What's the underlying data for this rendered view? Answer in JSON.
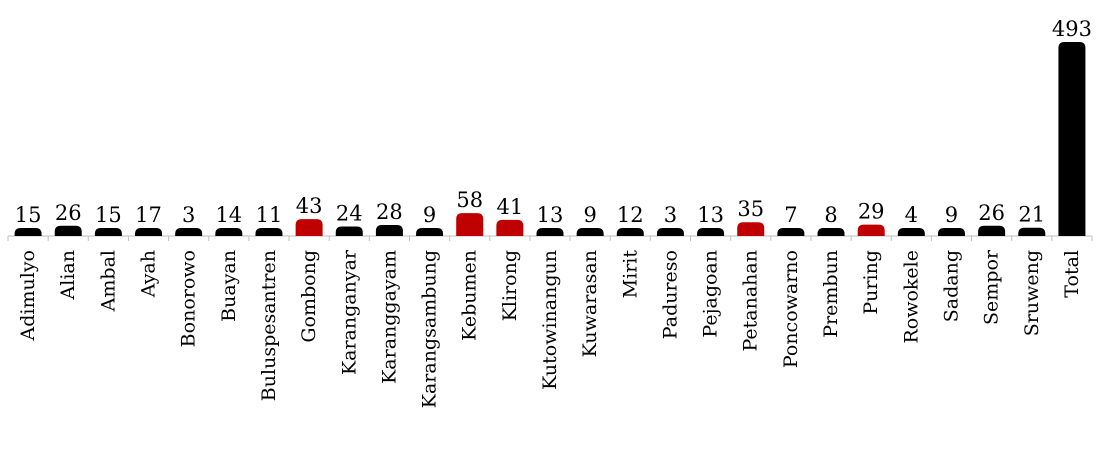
{
  "chart_data": {
    "type": "bar",
    "categories": [
      "Adimulyo",
      "Alian",
      "Ambal",
      "Ayah",
      "Bonorowo",
      "Buayan",
      "Buluspesantren",
      "Gombong",
      "Karanganyar",
      "Karanggayam",
      "Karangsambung",
      "Kebumen",
      "Klirong",
      "Kutowinangun",
      "Kuwarasan",
      "Mirit",
      "Padureso",
      "Pejagoan",
      "Petanahan",
      "Poncowarno",
      "Prembun",
      "Puring",
      "Rowokele",
      "Sadang",
      "Sempor",
      "Sruweng",
      "Total"
    ],
    "values": [
      15,
      26,
      15,
      17,
      3,
      14,
      11,
      43,
      24,
      28,
      9,
      58,
      41,
      13,
      9,
      12,
      3,
      13,
      35,
      7,
      8,
      29,
      4,
      9,
      26,
      21,
      493
    ],
    "value_labels": [
      "15",
      "26",
      "15",
      "17",
      "3",
      "14",
      "11",
      "43",
      "24",
      "28",
      "9",
      "58",
      "41",
      "13",
      "9",
      "12",
      "3",
      "13",
      "35",
      "7",
      "8",
      "29",
      "4",
      "9",
      "26",
      "21",
      "493"
    ],
    "highlighted": [
      "Gombong",
      "Kebumen",
      "Klirong",
      "Petanahan",
      "Puring"
    ],
    "colors": {
      "default": "#000000",
      "highlight": "#c00000",
      "axis": "#bfbfbf"
    },
    "ylim": [
      0,
      493
    ],
    "grid": false,
    "legend": "none"
  }
}
